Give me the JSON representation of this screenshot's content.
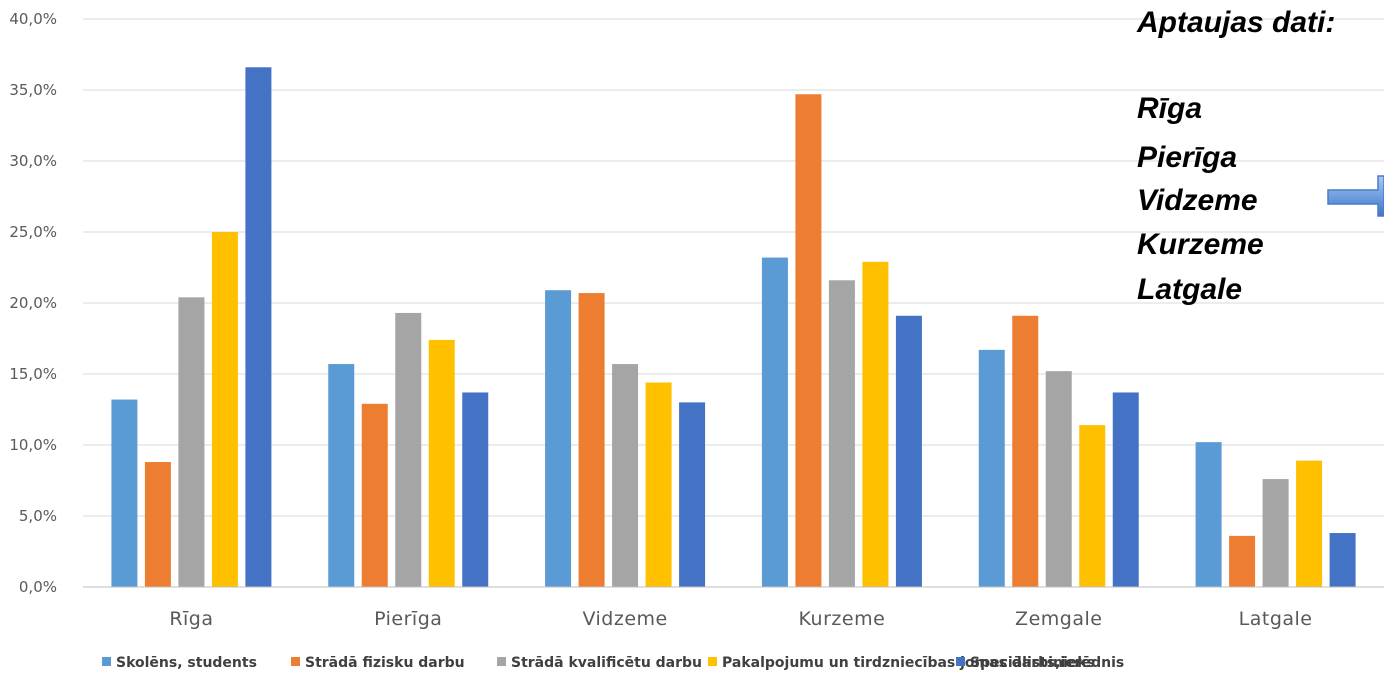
{
  "chart_data": {
    "type": "bar",
    "categories": [
      "Rīga",
      "Pierīga",
      "Vidzeme",
      "Kurzeme",
      "Zemgale",
      "Latgale"
    ],
    "series": [
      {
        "name": "Skolēns, students",
        "color": "#5B9BD5",
        "values": [
          13.2,
          15.7,
          20.9,
          23.2,
          16.7,
          10.2
        ]
      },
      {
        "name": "Strādā fizisku darbu",
        "color": "#ED7D31",
        "values": [
          8.8,
          12.9,
          20.7,
          34.7,
          19.1,
          3.6
        ]
      },
      {
        "name": "Strādā kvalificētu darbu",
        "color": "#A5A5A5",
        "values": [
          20.4,
          19.3,
          15.7,
          21.6,
          15.2,
          7.6
        ]
      },
      {
        "name": "Pakalpojumu un tirdzniecības jomas darbinieks",
        "color": "#FFC000",
        "values": [
          25.0,
          17.4,
          14.4,
          22.9,
          11.4,
          8.9
        ]
      },
      {
        "name": "Speciālists,ierēdnis",
        "color": "#4472C4",
        "values": [
          36.6,
          13.7,
          13.0,
          19.1,
          13.7,
          3.8
        ]
      }
    ],
    "ylim": [
      0,
      40
    ],
    "yticks": [
      "0,0%",
      "5,0%",
      "10,0%",
      "15,0%",
      "20,0%",
      "25,0%",
      "30,0%",
      "35,0%",
      "40,0%"
    ],
    "grid": true,
    "legend": "bottom"
  },
  "annotation": {
    "title": "Aptaujas dati:",
    "items": [
      "Rīga",
      "Pierīga",
      "Vidzeme",
      "Kurzeme",
      "Latgale"
    ],
    "arrow_icon": "right-arrow-icon"
  }
}
